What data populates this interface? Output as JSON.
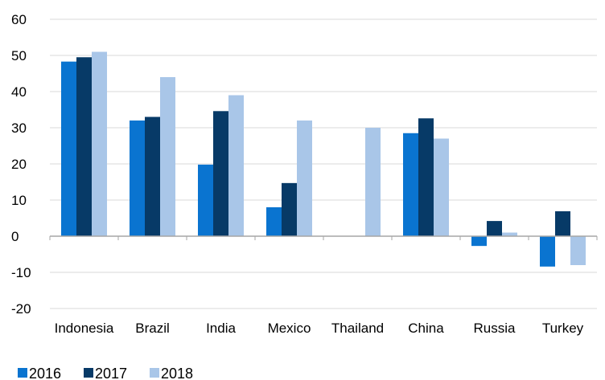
{
  "chart_data": {
    "type": "bar",
    "title": "",
    "xlabel": "",
    "ylabel": "",
    "categories": [
      "Indonesia",
      "Brazil",
      "India",
      "Mexico",
      "Thailand",
      "China",
      "Russia",
      "Turkey"
    ],
    "ylim": [
      -20,
      60
    ],
    "yticks": [
      -20,
      -10,
      0,
      10,
      20,
      30,
      40,
      50,
      60
    ],
    "grid": true,
    "legend_position": "bottom-left",
    "series": [
      {
        "name": "2016",
        "color": "#0a74d0",
        "values": [
          48.3,
          32.0,
          19.8,
          8.0,
          null,
          28.5,
          -2.7,
          -8.4
        ]
      },
      {
        "name": "2017",
        "color": "#073a67",
        "values": [
          49.5,
          33.0,
          34.6,
          14.7,
          null,
          32.6,
          4.2,
          6.9
        ]
      },
      {
        "name": "2018",
        "color": "#a9c6e8",
        "values": [
          51.0,
          44.0,
          39.0,
          32.0,
          30.0,
          27.0,
          1.0,
          -8.0
        ]
      }
    ]
  }
}
